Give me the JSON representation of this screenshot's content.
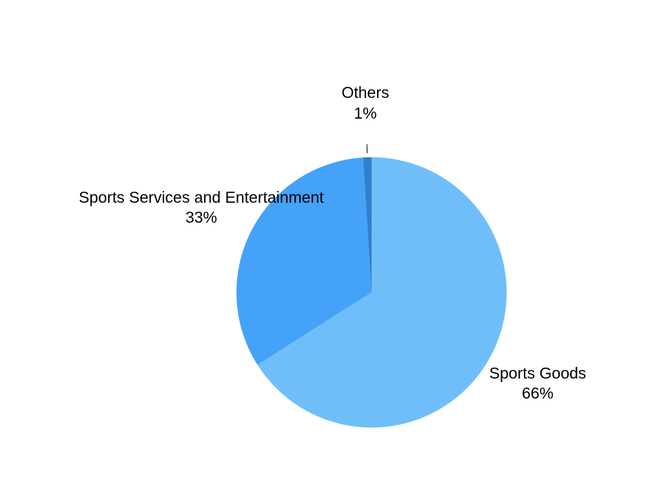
{
  "chart_data": {
    "type": "pie",
    "title": "",
    "start_angle_deg": 0,
    "direction": "clockwise",
    "slices": [
      {
        "label": "Sports Goods",
        "value": 66,
        "value_label": "66%",
        "color": "#70bef9"
      },
      {
        "label": "Sports Services and Entertainment",
        "value": 33,
        "value_label": "33%",
        "color": "#44a2f8"
      },
      {
        "label": "Others",
        "value": 1,
        "value_label": "1%",
        "color": "#2f7fcf"
      }
    ],
    "legend": "none",
    "labels": "outside"
  }
}
